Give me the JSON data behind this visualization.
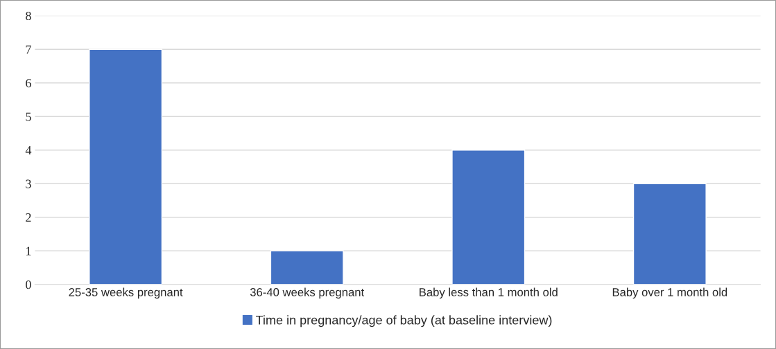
{
  "chart_data": {
    "type": "bar",
    "categories": [
      "25-35 weeks pregnant",
      "36-40 weeks pregnant",
      "Baby less than 1 month old",
      "Baby over 1 month old"
    ],
    "series": [
      {
        "name": "Time in pregnancy/age of baby (at baseline interview)",
        "color": "#4472c4",
        "values": [
          7,
          1,
          4,
          3
        ]
      }
    ],
    "ylim": [
      0,
      8
    ],
    "yticks": [
      0,
      1,
      2,
      3,
      4,
      5,
      6,
      7,
      8
    ],
    "grid": "y",
    "legend": "bottom"
  }
}
